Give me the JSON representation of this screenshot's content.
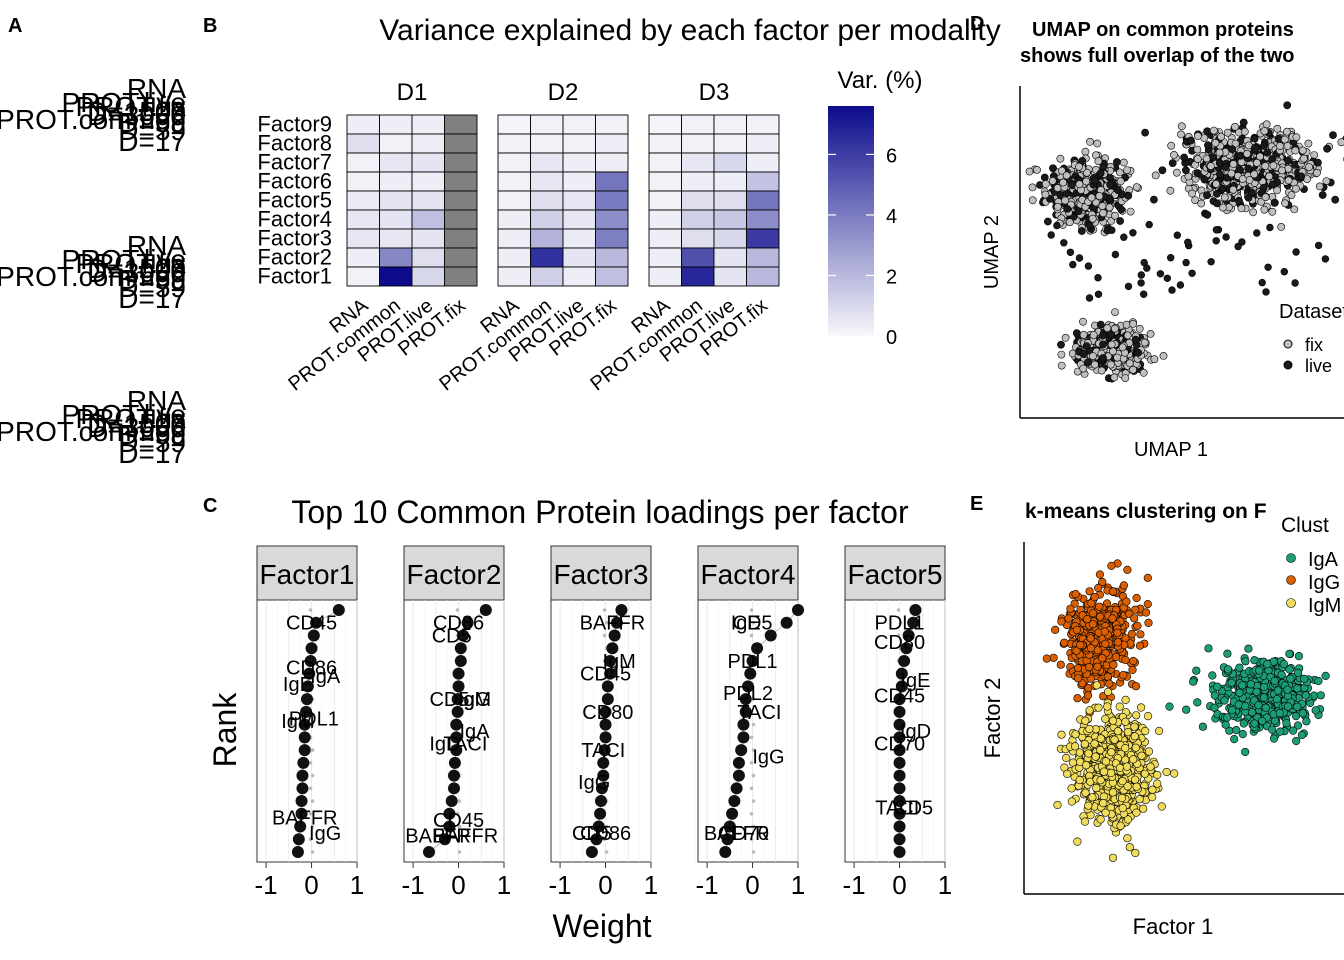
{
  "panel_letters": [
    "A",
    "B",
    "C",
    "D",
    "E"
  ],
  "panel_a": {
    "label_groups": [
      [
        "RNA",
        "PROT.live",
        "PROT.fix",
        "PROT.common",
        "D=1500",
        "D=3000",
        "D=59",
        "D=59",
        "D=17"
      ],
      [
        "RNA",
        "PROT.live",
        "PROT.fix",
        "PROT.common",
        "D=1500",
        "D=3000",
        "D=59",
        "D=59",
        "D=17"
      ],
      [
        "RNA",
        "PROT.live",
        "PROT.fix",
        "PROT.common",
        "D=1500",
        "D=3000",
        "D=59",
        "D=59",
        "D=17"
      ]
    ]
  },
  "colors": {
    "heat_low": "#f7f7fb",
    "heat_high": "#0b0b8c",
    "na_grey": "#808080",
    "strip_bg": "#d9d9d9",
    "fix": "#bfbfbf",
    "live": "#1a1a1a",
    "IgA": "#1b9e77",
    "IgG": "#d95f02",
    "IgM": "#f0dc5a"
  },
  "chart_data": [
    {
      "type": "heatmap",
      "title": "Variance explained by each factor per modality",
      "panels": [
        "D1",
        "D2",
        "D3"
      ],
      "rows": [
        "Factor9",
        "Factor8",
        "Factor7",
        "Factor6",
        "Factor5",
        "Factor4",
        "Factor3",
        "Factor2",
        "Factor1"
      ],
      "columns": [
        "RNA",
        "PROT.common",
        "PROT.live",
        "PROT.fix"
      ],
      "legend_title": "Var. (%)",
      "legend_ticks": [
        0,
        2,
        4,
        6
      ],
      "legend_range": [
        0,
        7.6
      ],
      "values": [
        [
          [
            0.3,
            0.3,
            0.3,
            null
          ],
          [
            0.8,
            0.2,
            0.3,
            null
          ],
          [
            0.2,
            0.5,
            0.6,
            null
          ],
          [
            0.2,
            0.3,
            0.3,
            null
          ],
          [
            0.4,
            0.6,
            0.6,
            null
          ],
          [
            0.5,
            0.6,
            1.8,
            null
          ],
          [
            0.5,
            0.5,
            0.6,
            null
          ],
          [
            0.3,
            3.6,
            0.8,
            null
          ],
          [
            0.2,
            7.6,
            1.0,
            null
          ]
        ],
        [
          [
            0.1,
            0.2,
            0.2,
            0.2
          ],
          [
            0.2,
            0.2,
            0.2,
            0.3
          ],
          [
            0.2,
            0.5,
            0.3,
            0.3
          ],
          [
            0.2,
            0.5,
            0.3,
            4.2
          ],
          [
            0.2,
            0.8,
            0.5,
            4.0
          ],
          [
            0.3,
            1.3,
            0.5,
            3.4
          ],
          [
            0.3,
            2.2,
            0.4,
            3.9
          ],
          [
            0.3,
            6.4,
            0.6,
            2.0
          ],
          [
            0.3,
            1.3,
            0.3,
            1.8
          ]
        ],
        [
          [
            0.1,
            0.2,
            0.2,
            0.2
          ],
          [
            0.2,
            0.2,
            0.2,
            0.3
          ],
          [
            0.2,
            0.5,
            1.0,
            0.3
          ],
          [
            0.2,
            0.3,
            0.3,
            1.7
          ],
          [
            0.2,
            0.8,
            0.8,
            4.2
          ],
          [
            0.3,
            1.3,
            1.5,
            3.4
          ],
          [
            0.3,
            0.8,
            1.0,
            6.1
          ],
          [
            0.3,
            5.4,
            0.6,
            2.0
          ],
          [
            0.3,
            6.7,
            0.6,
            2.0
          ]
        ]
      ]
    },
    {
      "type": "scatter",
      "title_lines": [
        "UMAP on common proteins",
        "shows full overlap of the two"
      ],
      "xlabel": "UMAP 1",
      "ylabel": "UMAP 2",
      "legend_title": "Dataset",
      "legend_entries": [
        "fix",
        "live"
      ],
      "clusters": [
        {
          "center": [
            -6.0,
            4.2
          ],
          "spread": [
            2.2,
            1.6
          ],
          "n": 500
        },
        {
          "center": [
            4.0,
            5.6
          ],
          "spread": [
            3.6,
            1.8
          ],
          "n": 700
        },
        {
          "center": [
            -4.6,
            -4.3
          ],
          "spread": [
            1.9,
            1.1
          ],
          "n": 360
        }
      ],
      "xlim": [
        -10,
        10
      ],
      "ylim": [
        -8,
        10
      ]
    },
    {
      "type": "scatter",
      "title": "Top 10  Common Protein loadings per factor",
      "xlabel": "Weight",
      "ylabel": "Rank",
      "x_ticks": [
        -1,
        0,
        1
      ],
      "x_tick_labels": [
        "-1",
        "0",
        "1"
      ],
      "xlim": [
        -1.2,
        1.0
      ],
      "facets": [
        {
          "strip": "Factor1",
          "points": [
            0.6,
            0.1,
            0.05,
            0.0,
            -0.02,
            -0.05,
            -0.08,
            -0.1,
            -0.12,
            -0.15,
            -0.15,
            -0.15,
            -0.18,
            -0.2,
            -0.2,
            -0.22,
            -0.22,
            -0.25,
            -0.28,
            -0.3
          ],
          "labels": [
            {
              "text": "CD45",
              "x": 0.0,
              "rank": 2.0
            },
            {
              "text": "CD86",
              "x": 0.0,
              "rank": 5.5
            },
            {
              "text": "IgA",
              "x": 0.3,
              "rank": 6.2
            },
            {
              "text": "IgE",
              "x": -0.3,
              "rank": 6.8
            },
            {
              "text": "PDL1",
              "x": 0.05,
              "rank": 9.5
            },
            {
              "text": "IgM",
              "x": -0.3,
              "rank": 9.7
            },
            {
              "text": "BAFFR",
              "x": -0.15,
              "rank": 17.3
            },
            {
              "text": "IgG",
              "x": 0.3,
              "rank": 18.5
            }
          ]
        },
        {
          "strip": "Factor2",
          "points": [
            0.6,
            0.2,
            0.1,
            0.05,
            0.05,
            0.0,
            0.0,
            -0.02,
            -0.02,
            -0.05,
            -0.05,
            -0.05,
            -0.08,
            -0.1,
            -0.1,
            -0.15,
            -0.2,
            -0.2,
            -0.3,
            -0.65
          ],
          "labels": [
            {
              "text": "CD86",
              "x": 0.0,
              "rank": 2.0
            },
            {
              "text": "CD5",
              "x": -0.15,
              "rank": 3.0
            },
            {
              "text": "CD5",
              "x": -0.2,
              "rank": 8.0
            },
            {
              "text": "IgG",
              "x": 0.35,
              "rank": 8.0
            },
            {
              "text": "IgM",
              "x": 0.35,
              "rank": 8.0
            },
            {
              "text": "IgA",
              "x": 0.35,
              "rank": 10.5
            },
            {
              "text": "IgD",
              "x": -0.3,
              "rank": 11.5
            },
            {
              "text": "TACI",
              "x": 0.15,
              "rank": 11.5
            },
            {
              "text": "CD45",
              "x": 0.0,
              "rank": 17.5
            },
            {
              "text": "BAFFR",
              "x": -0.45,
              "rank": 18.7
            },
            {
              "text": "BAFFR",
              "x": 0.15,
              "rank": 18.7
            }
          ]
        },
        {
          "strip": "Factor3",
          "points": [
            0.35,
            0.25,
            0.2,
            0.15,
            0.1,
            0.1,
            0.05,
            0.05,
            0.0,
            0.0,
            0.0,
            -0.02,
            -0.05,
            -0.05,
            -0.08,
            -0.1,
            -0.12,
            -0.15,
            -0.2,
            -0.3
          ],
          "labels": [
            {
              "text": "BAFFR",
              "x": 0.15,
              "rank": 2.0
            },
            {
              "text": "IgM",
              "x": 0.3,
              "rank": 5.0
            },
            {
              "text": "CD45",
              "x": 0.0,
              "rank": 6.0
            },
            {
              "text": "CD80",
              "x": 0.05,
              "rank": 9.0
            },
            {
              "text": "TACI",
              "x": -0.05,
              "rank": 12.0
            },
            {
              "text": "IgG",
              "x": -0.25,
              "rank": 14.5
            },
            {
              "text": "CD86",
              "x": 0.0,
              "rank": 18.5
            },
            {
              "text": "CD5",
              "x": -0.3,
              "rank": 18.5
            }
          ]
        },
        {
          "strip": "Factor4",
          "points": [
            1.0,
            0.75,
            0.4,
            0.1,
            0.0,
            -0.05,
            -0.1,
            -0.15,
            -0.15,
            -0.2,
            -0.2,
            -0.25,
            -0.3,
            -0.3,
            -0.35,
            -0.4,
            -0.45,
            -0.5,
            -0.55,
            -0.6
          ],
          "labels": [
            {
              "text": "IgE",
              "x": -0.15,
              "rank": 2.0
            },
            {
              "text": "CD5",
              "x": 0.0,
              "rank": 2.0
            },
            {
              "text": "PDL1",
              "x": 0.0,
              "rank": 5.0
            },
            {
              "text": "PDL2",
              "x": -0.1,
              "rank": 7.5
            },
            {
              "text": "TACI",
              "x": 0.15,
              "rank": 9.0
            },
            {
              "text": "IgG",
              "x": 0.35,
              "rank": 12.5
            },
            {
              "text": "BAFFR",
              "x": -0.35,
              "rank": 18.5
            },
            {
              "text": "CD70",
              "x": -0.2,
              "rank": 18.5
            }
          ]
        },
        {
          "strip": "Factor5",
          "points": [
            0.35,
            0.3,
            0.2,
            0.15,
            0.1,
            0.05,
            0.05,
            0.0,
            0.0,
            0.0,
            0.0,
            0.0,
            0.0,
            0.0,
            0.0,
            0.0,
            0.0,
            0.0,
            0.0,
            0.0
          ],
          "labels": [
            {
              "text": "PDL1",
              "x": 0.0,
              "rank": 2.0
            },
            {
              "text": "CD80",
              "x": 0.0,
              "rank": 3.5
            },
            {
              "text": "IgE",
              "x": 0.35,
              "rank": 6.5
            },
            {
              "text": "CD45",
              "x": 0.0,
              "rank": 7.7
            },
            {
              "text": "IgD",
              "x": 0.35,
              "rank": 10.5
            },
            {
              "text": "CD70",
              "x": 0.0,
              "rank": 11.5
            },
            {
              "text": "TACI",
              "x": -0.05,
              "rank": 16.5
            },
            {
              "text": "CD5",
              "x": 0.3,
              "rank": 16.5
            }
          ]
        }
      ]
    },
    {
      "type": "scatter",
      "title": "k-means clustering on F",
      "xlabel": "Factor 1",
      "ylabel": "Factor 2",
      "legend_title": "Clust",
      "legend_entries": [
        "IgA",
        "IgG",
        "IgM"
      ],
      "clusters": [
        {
          "name": "IgG",
          "center": [
            -2.0,
            2.6
          ],
          "spread": [
            0.9,
            1.2
          ],
          "n": 500
        },
        {
          "name": "IgM",
          "center": [
            -1.6,
            -1.3
          ],
          "spread": [
            1.0,
            1.3
          ],
          "n": 650
        },
        {
          "name": "IgA",
          "center": [
            3.4,
            0.9
          ],
          "spread": [
            1.3,
            0.85
          ],
          "n": 500
        }
      ],
      "xlim": [
        -4.5,
        6
      ],
      "ylim": [
        -5,
        5.5
      ]
    }
  ]
}
